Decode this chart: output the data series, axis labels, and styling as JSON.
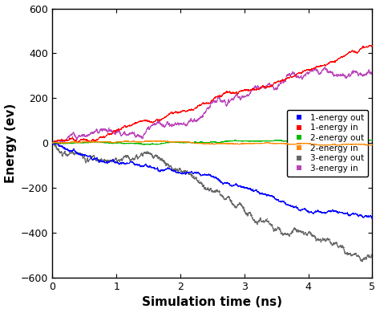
{
  "title": "",
  "xlabel": "Simulation time (ns)",
  "ylabel": "Energy (ev)",
  "xlim": [
    0,
    5
  ],
  "ylim": [
    -600,
    600
  ],
  "xticks": [
    0,
    1,
    2,
    3,
    4,
    5
  ],
  "yticks": [
    -600,
    -400,
    -200,
    0,
    200,
    400,
    600
  ],
  "series": [
    {
      "label": "3-energy in",
      "color": "#bb44bb",
      "slope": 100,
      "walk_std": 2.5,
      "zorder": 1
    },
    {
      "label": "3-energy out",
      "color": "#666666",
      "slope": -100,
      "walk_std": 2.5,
      "zorder": 2
    },
    {
      "label": "1-energy in",
      "color": "#ff0000",
      "slope": 96,
      "walk_std": 1.2,
      "zorder": 3
    },
    {
      "label": "1-energy out",
      "color": "#0000ff",
      "slope": -62,
      "walk_std": 1.2,
      "zorder": 4
    },
    {
      "label": "2-energy out",
      "color": "#00bb00",
      "slope": 0.0,
      "walk_std": 0.3,
      "zorder": 5
    },
    {
      "label": "2-energy in",
      "color": "#ff8800",
      "slope": 0.0,
      "walk_std": 0.3,
      "zorder": 6
    }
  ],
  "n_points": 2000,
  "seed": 7,
  "figsize": [
    4.74,
    3.9
  ],
  "dpi": 100,
  "bg_color": "#ffffff",
  "legend_fontsize": 7.5,
  "axis_label_fontsize": 11,
  "tick_fontsize": 9,
  "marker_size": 1.0,
  "legend_order": [
    "1-energy out",
    "1-energy in",
    "2-energy out",
    "2-energy in",
    "3-energy out",
    "3-energy in"
  ]
}
